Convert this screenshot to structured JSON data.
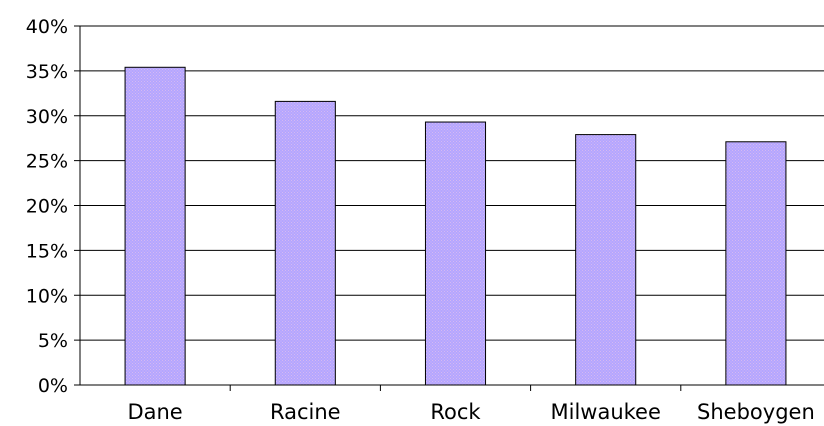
{
  "chart_data": {
    "type": "bar",
    "categories": [
      "Dane",
      "Racine",
      "Rock",
      "Milwaukee",
      "Sheboygen"
    ],
    "values": [
      35.4,
      31.6,
      29.3,
      27.9,
      27.1
    ],
    "value_unit": "%",
    "ylim": [
      0,
      40
    ],
    "ytick_step": 5,
    "ytick_labels": [
      "0%",
      "5%",
      "10%",
      "15%",
      "20%",
      "25%",
      "30%",
      "35%",
      "40%"
    ],
    "grid": true,
    "legend": "none",
    "title": "",
    "xlabel": "",
    "ylabel": "",
    "colors": {
      "bar_fill": "#b3a6ff",
      "bar_pattern": "#c9b0f0",
      "bar_stroke": "#000000",
      "grid": "#000000",
      "axis": "#000000"
    }
  }
}
